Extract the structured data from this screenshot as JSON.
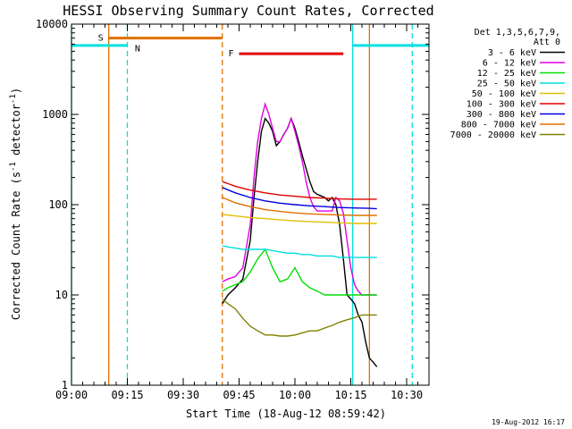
{
  "chart_data": {
    "type": "line",
    "title": "HESSI Observing Summary Count Rates, Corrected",
    "xlabel": "Start Time (18-Aug-12 08:59:42)",
    "ylabel_main": "Corrected Count Rate (s",
    "ylabel_sup1": "-1",
    "ylabel_mid": " detector",
    "ylabel_sup2": "-1",
    "ylabel_end": ")",
    "x_unit": "minutes after 09:00",
    "xlim": [
      0,
      96
    ],
    "ylim": [
      1,
      10000
    ],
    "yscale": "log",
    "x_ticks": [
      {
        "v": 0,
        "label": "09:00"
      },
      {
        "v": 15,
        "label": "09:15"
      },
      {
        "v": 30,
        "label": "09:30"
      },
      {
        "v": 45,
        "label": "09:45"
      },
      {
        "v": 60,
        "label": "10:00"
      },
      {
        "v": 75,
        "label": "10:15"
      },
      {
        "v": 90,
        "label": "10:30"
      }
    ],
    "y_ticks": [
      {
        "v": 1,
        "label": "1"
      },
      {
        "v": 10,
        "label": "10"
      },
      {
        "v": 100,
        "label": "100"
      },
      {
        "v": 1000,
        "label": "1000"
      },
      {
        "v": 10000,
        "label": "10000"
      }
    ],
    "legend_header": [
      "Det 1,3,5,6,7,9,",
      "Att 0"
    ],
    "legend_placement": "right",
    "series": [
      {
        "name": "3 - 6 keV",
        "color": "#000000",
        "x": [
          40.5,
          42,
          44,
          46,
          48,
          49,
          50,
          51,
          52,
          53,
          54,
          55,
          56,
          57,
          58,
          59,
          60,
          61,
          62,
          63,
          64,
          65,
          66,
          67,
          68,
          69,
          70,
          71,
          72,
          73,
          74,
          75,
          76,
          77,
          78,
          79,
          80,
          81,
          82
        ],
        "y": [
          8,
          10,
          12,
          15,
          40,
          120,
          300,
          650,
          900,
          800,
          650,
          450,
          500,
          600,
          700,
          900,
          700,
          500,
          350,
          250,
          180,
          140,
          130,
          125,
          120,
          110,
          120,
          100,
          60,
          25,
          10,
          9,
          8,
          6,
          5,
          3,
          2,
          1.8,
          1.6
        ]
      },
      {
        "name": "6 - 12 keV",
        "color": "#e000e0",
        "x": [
          40.5,
          42,
          44,
          46,
          48,
          49,
          50,
          51,
          52,
          53,
          54,
          55,
          56,
          57,
          58,
          59,
          60,
          61,
          62,
          63,
          64,
          65,
          66,
          67,
          68,
          69,
          70,
          71,
          72,
          73,
          74,
          75,
          76,
          77,
          78,
          79,
          80,
          81,
          82
        ],
        "y": [
          14,
          15,
          16,
          20,
          60,
          200,
          500,
          900,
          1300,
          1000,
          700,
          500,
          500,
          600,
          700,
          900,
          650,
          450,
          300,
          180,
          120,
          95,
          85,
          85,
          85,
          85,
          85,
          120,
          110,
          80,
          40,
          20,
          13,
          11,
          10,
          10,
          10,
          10,
          10
        ]
      },
      {
        "name": "12 - 25 keV",
        "color": "#00e000",
        "x": [
          40.5,
          42,
          44,
          46,
          48,
          50,
          52,
          54,
          56,
          58,
          60,
          62,
          64,
          66,
          68,
          70,
          72,
          74,
          76,
          78,
          80,
          82
        ],
        "y": [
          11,
          12,
          13,
          14,
          18,
          25,
          32,
          20,
          14,
          15,
          20,
          14,
          12,
          11,
          10,
          10,
          10,
          10,
          10,
          10,
          10,
          10
        ]
      },
      {
        "name": "25 - 50 keV",
        "color": "#00e0e0",
        "x": [
          40.5,
          42,
          44,
          46,
          48,
          50,
          52,
          54,
          56,
          58,
          60,
          62,
          64,
          66,
          68,
          70,
          72,
          74,
          76,
          78,
          80,
          82
        ],
        "y": [
          35,
          34,
          33,
          32,
          32,
          32,
          32,
          31,
          30,
          29,
          29,
          28,
          28,
          27,
          27,
          27,
          26,
          26,
          26,
          26,
          26,
          26
        ]
      },
      {
        "name": "50 - 100 keV",
        "color": "#e0c000",
        "x": [
          40.5,
          44,
          48,
          52,
          56,
          60,
          64,
          68,
          72,
          76,
          80,
          82
        ],
        "y": [
          78,
          75,
          72,
          70,
          68,
          66,
          65,
          64,
          63,
          62,
          62,
          62
        ]
      },
      {
        "name": "100 - 300 keV",
        "color": "#e00000",
        "x": [
          40.5,
          44,
          48,
          52,
          56,
          60,
          64,
          68,
          72,
          76,
          80,
          82
        ],
        "y": [
          180,
          160,
          145,
          135,
          128,
          124,
          120,
          118,
          116,
          115,
          115,
          115
        ]
      },
      {
        "name": "300 - 800 keV",
        "color": "#0000e0",
        "x": [
          40.5,
          44,
          48,
          52,
          56,
          60,
          64,
          68,
          72,
          76,
          80,
          82
        ],
        "y": [
          155,
          135,
          120,
          110,
          104,
          100,
          97,
          95,
          93,
          92,
          91,
          90
        ]
      },
      {
        "name": "800 - 7000 keV",
        "color": "#e07000",
        "x": [
          40.5,
          44,
          48,
          52,
          56,
          60,
          64,
          68,
          72,
          76,
          80,
          82
        ],
        "y": [
          120,
          105,
          95,
          88,
          84,
          81,
          79,
          78,
          77,
          76,
          76,
          76
        ]
      },
      {
        "name": "7000 - 20000 keV",
        "color": "#808000",
        "x": [
          40.5,
          42,
          44,
          46,
          48,
          50,
          52,
          54,
          56,
          58,
          60,
          62,
          64,
          66,
          68,
          70,
          72,
          74,
          76,
          78,
          80,
          82
        ],
        "y": [
          9,
          8,
          7,
          5.5,
          4.5,
          4,
          3.6,
          3.6,
          3.5,
          3.5,
          3.6,
          3.8,
          4,
          4,
          4.3,
          4.6,
          5,
          5.3,
          5.6,
          6,
          6,
          6
        ]
      }
    ],
    "flag_segments": [
      {
        "label": "S",
        "color": "#e07000",
        "x0": 10,
        "x1": 40.5,
        "y": 7000
      },
      {
        "label": "F",
        "color": "#e00000",
        "x0": 45,
        "x1": 73,
        "y": 4700
      },
      {
        "label": "",
        "color": "#00e0e0",
        "x0": 0,
        "x1": 15,
        "y": 5800
      },
      {
        "label": "",
        "color": "#00e0e0",
        "x0": 75.5,
        "x1": 96,
        "y": 5800
      }
    ],
    "vlines": [
      {
        "x": 0,
        "color": "#00e0e0",
        "style": "solid"
      },
      {
        "x": 10,
        "color": "#e07000",
        "style": "solid"
      },
      {
        "x": 15,
        "color": "#00e0e0",
        "style": "dashed"
      },
      {
        "x": 40.5,
        "color": "#e07000",
        "style": "dashed"
      },
      {
        "x": 75.5,
        "color": "#00e0e0",
        "style": "solid"
      },
      {
        "x": 80,
        "color": "#e07000",
        "style": "solid"
      },
      {
        "x": 91.5,
        "color": "#00e0e0",
        "style": "dashed"
      }
    ],
    "annotations": [
      {
        "text": "N",
        "color": "#00e0e0",
        "x": 17,
        "y": 5000
      }
    ],
    "footer_date": "19-Aug-2012 16:17"
  }
}
